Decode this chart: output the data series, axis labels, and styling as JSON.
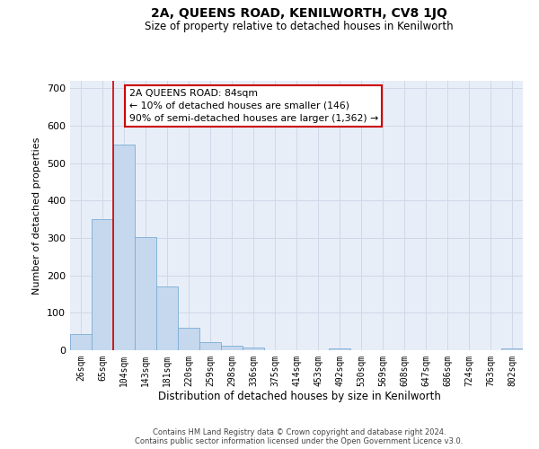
{
  "title": "2A, QUEENS ROAD, KENILWORTH, CV8 1JQ",
  "subtitle": "Size of property relative to detached houses in Kenilworth",
  "xlabel": "Distribution of detached houses by size in Kenilworth",
  "ylabel": "Number of detached properties",
  "bar_color": "#c5d8ee",
  "bar_edge_color": "#7aadd4",
  "categories": [
    "26sqm",
    "65sqm",
    "104sqm",
    "143sqm",
    "181sqm",
    "220sqm",
    "259sqm",
    "298sqm",
    "336sqm",
    "375sqm",
    "414sqm",
    "453sqm",
    "492sqm",
    "530sqm",
    "569sqm",
    "608sqm",
    "647sqm",
    "686sqm",
    "724sqm",
    "763sqm",
    "802sqm"
  ],
  "values": [
    43,
    350,
    550,
    303,
    170,
    60,
    22,
    11,
    8,
    0,
    0,
    0,
    6,
    0,
    0,
    0,
    0,
    0,
    0,
    0,
    6
  ],
  "ylim": [
    0,
    720
  ],
  "yticks": [
    0,
    100,
    200,
    300,
    400,
    500,
    600,
    700
  ],
  "vline_pos": 1.48,
  "annotation_text": "2A QUEENS ROAD: 84sqm\n← 10% of detached houses are smaller (146)\n90% of semi-detached houses are larger (1,362) →",
  "annotation_box_color": "#ffffff",
  "annotation_box_edge_color": "#cc0000",
  "grid_color": "#d0d8e8",
  "bg_color": "#e8eef8",
  "footer_line1": "Contains HM Land Registry data © Crown copyright and database right 2024.",
  "footer_line2": "Contains public sector information licensed under the Open Government Licence v3.0."
}
